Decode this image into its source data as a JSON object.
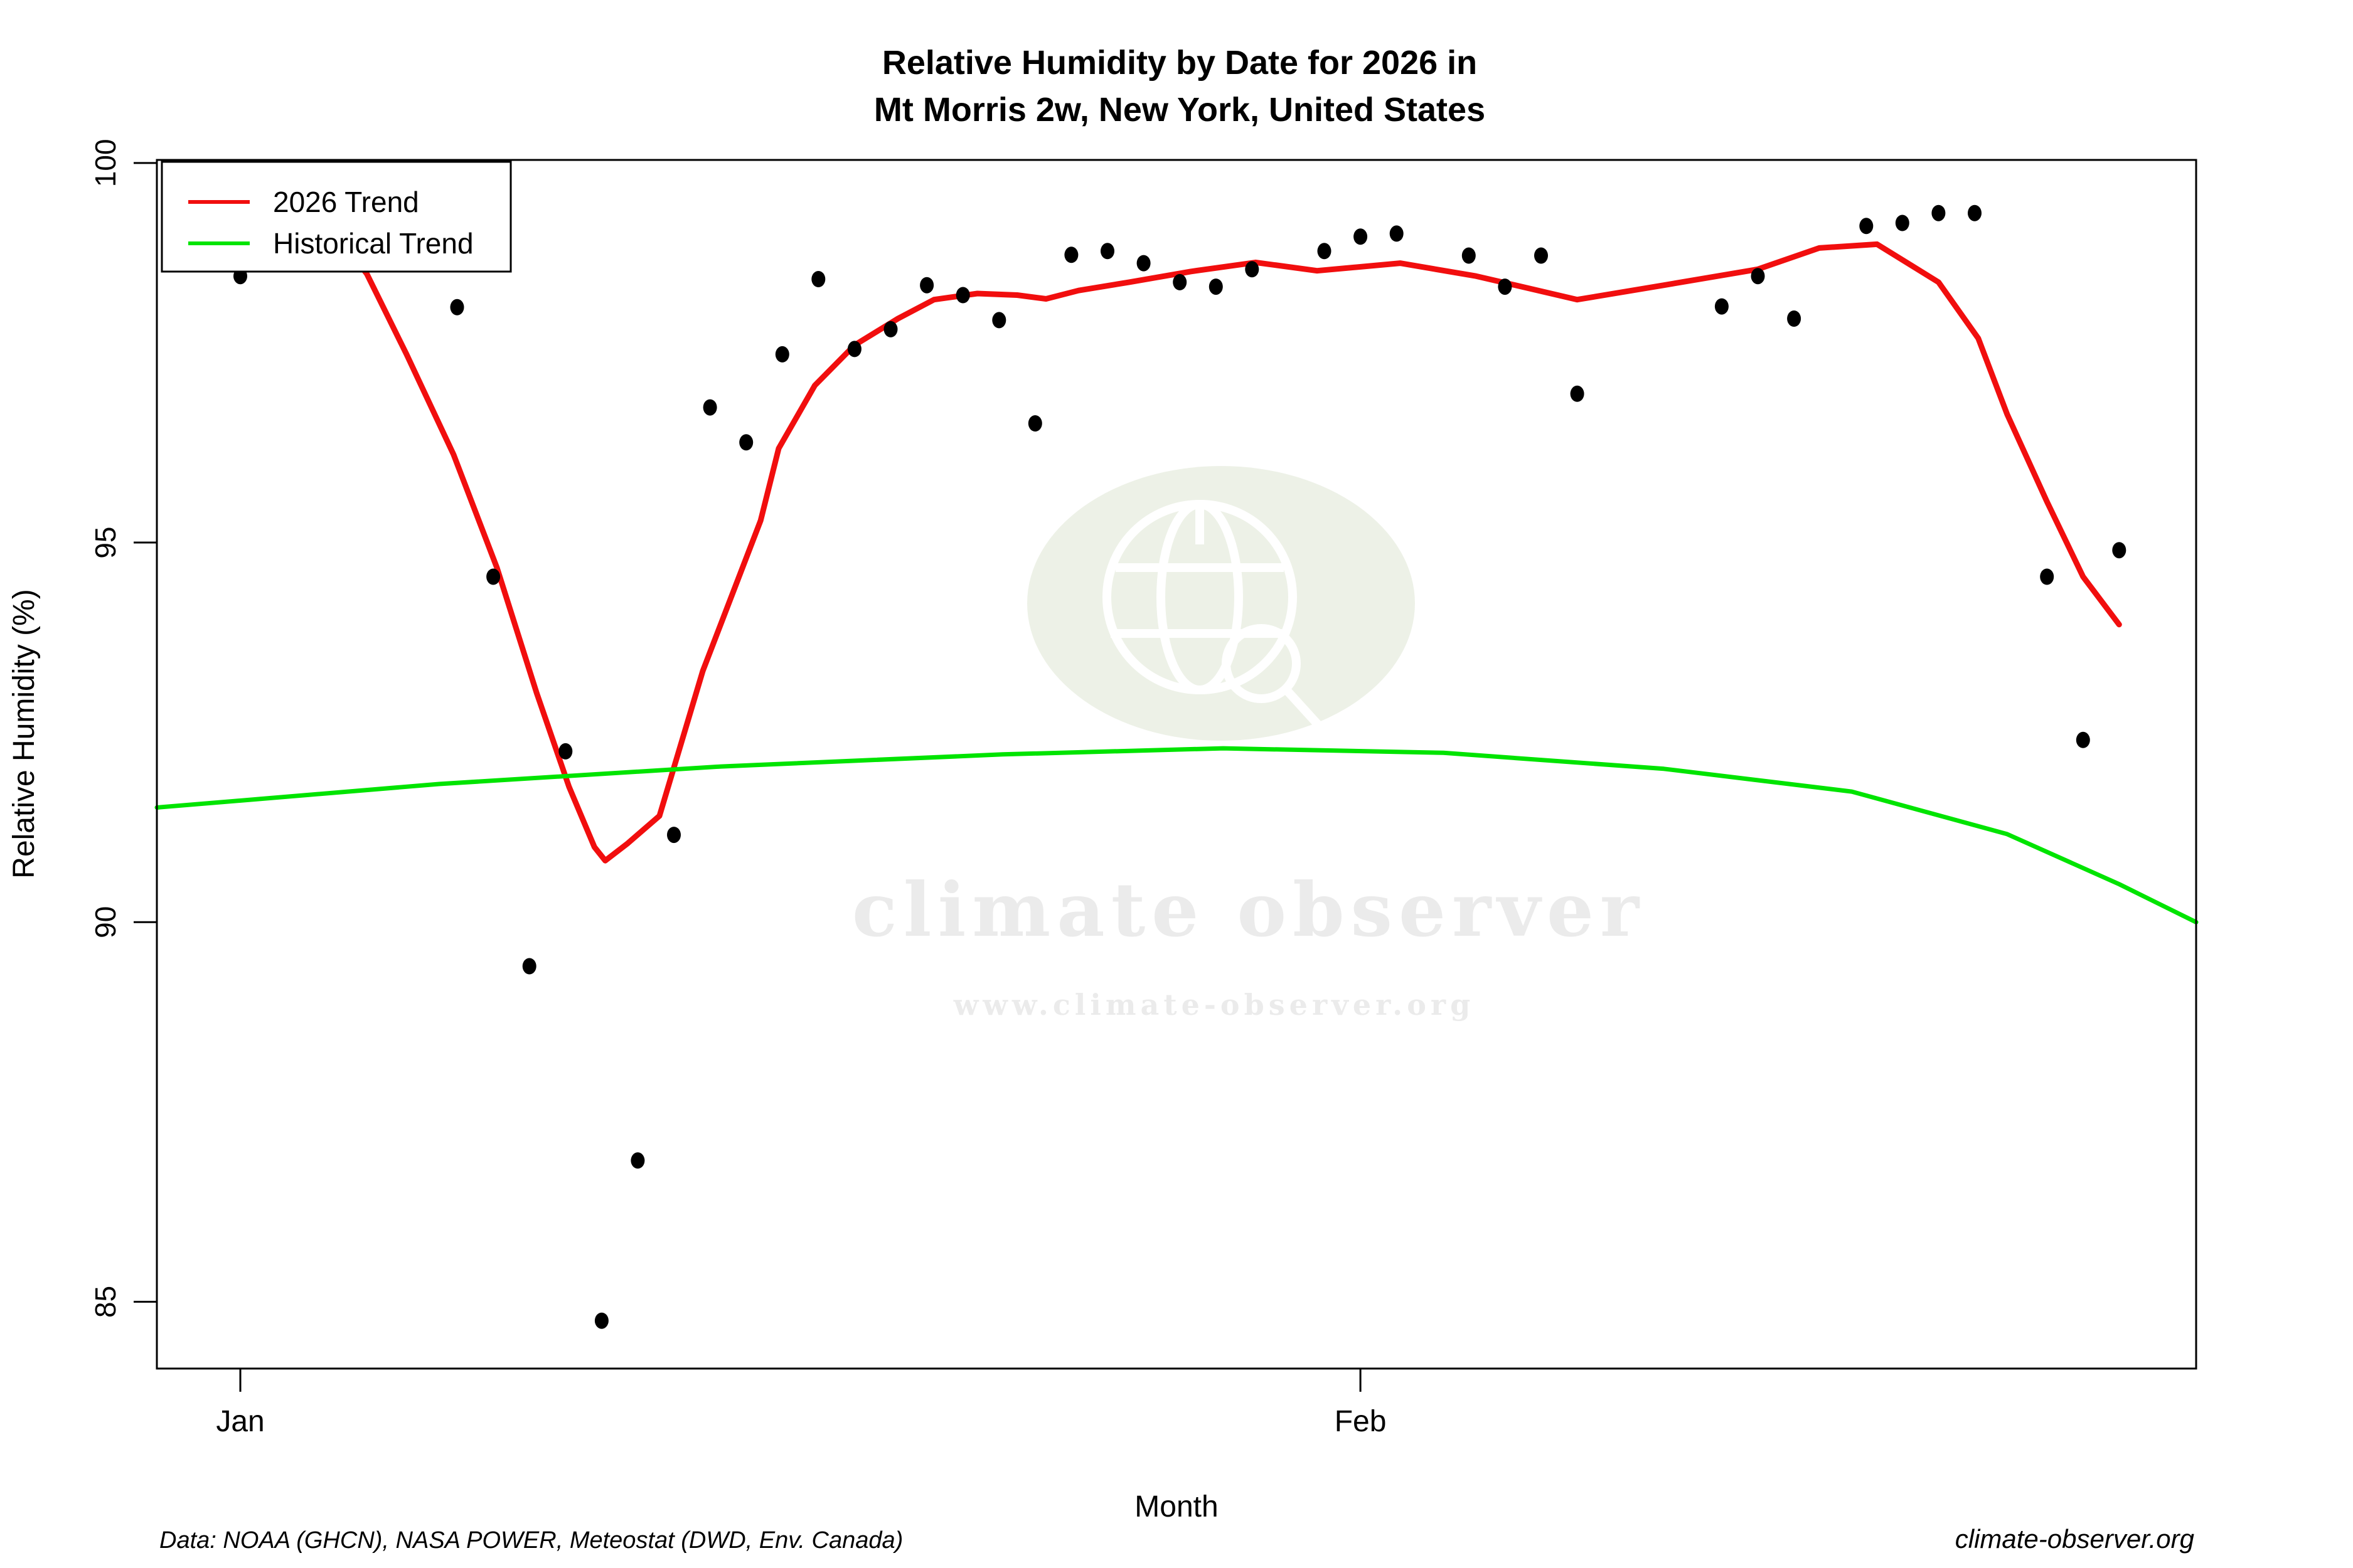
{
  "title": {
    "line1": "Relative Humidity by Date for 2026 in",
    "line2": "Mt Morris 2w, New York, United States"
  },
  "legend": {
    "items": [
      {
        "label": "2026 Trend",
        "color": "#f10e0e"
      },
      {
        "label": "Historical Trend",
        "color": "#00e400"
      }
    ]
  },
  "axes": {
    "ylabel": "Relative Humidity (%)",
    "xlabel": "Month"
  },
  "watermark": {
    "brand": "climate observer",
    "url": "www.climate-observer.org",
    "blob_color": "#edf1e7",
    "text_color": "#ebebeb"
  },
  "footer": {
    "source": "Data: NOAA (GHCN), NASA POWER, Meteostat (DWD, Env. Canada)",
    "site": "climate-observer.org",
    "site_color": "#2626d8",
    "source_color": "#686868"
  },
  "chart_data": {
    "type": "scatter",
    "title": "Relative Humidity by Date for 2026 in Mt Morris 2w, New York, United States",
    "xlabel": "Month",
    "ylabel": "Relative Humidity (%)",
    "grid": false,
    "legend_position": "top-left",
    "point_color": "#000000",
    "xlim_days": [
      -1.31,
      55.13
    ],
    "ylim": [
      84.12,
      100.04
    ],
    "x_ticks": [
      {
        "label": "Jan",
        "day": 1
      },
      {
        "label": "Feb",
        "day": 32
      }
    ],
    "y_ticks": [
      100,
      95,
      90,
      85
    ],
    "points": [
      {
        "date": "Jan 1",
        "day": 1,
        "value": 98.51
      },
      {
        "date": "Jan 7",
        "day": 7,
        "value": 98.1
      },
      {
        "date": "Jan 8",
        "day": 8,
        "value": 94.55
      },
      {
        "date": "Jan 9",
        "day": 9,
        "value": 89.42
      },
      {
        "date": "Jan 10",
        "day": 10,
        "value": 92.25
      },
      {
        "date": "Jan 11",
        "day": 11,
        "value": 84.75
      },
      {
        "date": "Jan 12",
        "day": 12,
        "value": 86.86
      },
      {
        "date": "Jan 13",
        "day": 13,
        "value": 91.15
      },
      {
        "date": "Jan 14",
        "day": 14,
        "value": 96.78
      },
      {
        "date": "Jan 15",
        "day": 15,
        "value": 96.32
      },
      {
        "date": "Jan 16",
        "day": 16,
        "value": 97.48
      },
      {
        "date": "Jan 17",
        "day": 17,
        "value": 98.47
      },
      {
        "date": "Jan 18",
        "day": 18,
        "value": 97.55
      },
      {
        "date": "Jan 19",
        "day": 19,
        "value": 97.81
      },
      {
        "date": "Jan 20",
        "day": 20,
        "value": 98.39
      },
      {
        "date": "Jan 21",
        "day": 21,
        "value": 98.26
      },
      {
        "date": "Jan 22",
        "day": 22,
        "value": 97.93
      },
      {
        "date": "Jan 23",
        "day": 23,
        "value": 96.57
      },
      {
        "date": "Jan 24",
        "day": 24,
        "value": 98.79
      },
      {
        "date": "Jan 25",
        "day": 25,
        "value": 98.84
      },
      {
        "date": "Jan 26",
        "day": 26,
        "value": 98.68
      },
      {
        "date": "Jan 27",
        "day": 27,
        "value": 98.43
      },
      {
        "date": "Jan 28",
        "day": 28,
        "value": 98.37
      },
      {
        "date": "Jan 29",
        "day": 29,
        "value": 98.6
      },
      {
        "date": "Jan 31",
        "day": 31,
        "value": 98.84
      },
      {
        "date": "Feb 1",
        "day": 32,
        "value": 99.03
      },
      {
        "date": "Feb 2",
        "day": 33,
        "value": 99.07
      },
      {
        "date": "Feb 4",
        "day": 35,
        "value": 98.78
      },
      {
        "date": "Feb 5",
        "day": 36,
        "value": 98.37
      },
      {
        "date": "Feb 6",
        "day": 37,
        "value": 98.78
      },
      {
        "date": "Feb 7",
        "day": 38,
        "value": 96.96
      },
      {
        "date": "Feb 11",
        "day": 42,
        "value": 98.11
      },
      {
        "date": "Feb 12",
        "day": 43,
        "value": 98.51
      },
      {
        "date": "Feb 13",
        "day": 44,
        "value": 97.95
      },
      {
        "date": "Feb 15",
        "day": 46,
        "value": 99.17
      },
      {
        "date": "Feb 16",
        "day": 47,
        "value": 99.21
      },
      {
        "date": "Feb 17",
        "day": 48,
        "value": 99.34
      },
      {
        "date": "Feb 18",
        "day": 49,
        "value": 99.34
      },
      {
        "date": "Feb 20",
        "day": 51,
        "value": 94.55
      },
      {
        "date": "Feb 21",
        "day": 52,
        "value": 92.4
      },
      {
        "date": "Feb 22",
        "day": 53,
        "value": 94.9
      }
    ],
    "series": [
      {
        "name": "2026 Trend",
        "color": "#f10e0e",
        "width": 9,
        "points": [
          [
            1.0,
            99.92
          ],
          [
            2.7,
            99.63
          ],
          [
            4.5,
            98.54
          ],
          [
            5.6,
            97.48
          ],
          [
            6.9,
            96.16
          ],
          [
            8.1,
            94.67
          ],
          [
            9.2,
            93.02
          ],
          [
            10.1,
            91.78
          ],
          [
            10.8,
            90.99
          ],
          [
            11.1,
            90.81
          ],
          [
            11.7,
            91.03
          ],
          [
            12.6,
            91.4
          ],
          [
            13.8,
            93.31
          ],
          [
            15.4,
            95.29
          ],
          [
            15.9,
            96.24
          ],
          [
            16.9,
            97.07
          ],
          [
            18.0,
            97.6
          ],
          [
            19.2,
            97.95
          ],
          [
            20.2,
            98.2
          ],
          [
            21.4,
            98.28
          ],
          [
            22.5,
            98.26
          ],
          [
            23.3,
            98.21
          ],
          [
            24.2,
            98.32
          ],
          [
            25.6,
            98.43
          ],
          [
            27.3,
            98.57
          ],
          [
            29.1,
            98.69
          ],
          [
            30.8,
            98.58
          ],
          [
            33.1,
            98.68
          ],
          [
            35.2,
            98.51
          ],
          [
            38.0,
            98.2
          ],
          [
            40.4,
            98.39
          ],
          [
            43.0,
            98.6
          ],
          [
            44.7,
            98.88
          ],
          [
            46.3,
            98.93
          ],
          [
            48.0,
            98.43
          ],
          [
            49.1,
            97.69
          ],
          [
            49.9,
            96.69
          ],
          [
            51.0,
            95.54
          ],
          [
            52.0,
            94.55
          ],
          [
            53.0,
            93.92
          ]
        ]
      },
      {
        "name": "Historical Trend",
        "color": "#00e400",
        "width": 7,
        "points": [
          [
            -1.31,
            91.51
          ],
          [
            6.5,
            91.82
          ],
          [
            14.3,
            92.05
          ],
          [
            22.1,
            92.21
          ],
          [
            28.2,
            92.29
          ],
          [
            34.3,
            92.23
          ],
          [
            40.4,
            92.02
          ],
          [
            45.6,
            91.72
          ],
          [
            49.9,
            91.16
          ],
          [
            53.0,
            90.5
          ],
          [
            55.13,
            90.0
          ]
        ]
      }
    ]
  }
}
